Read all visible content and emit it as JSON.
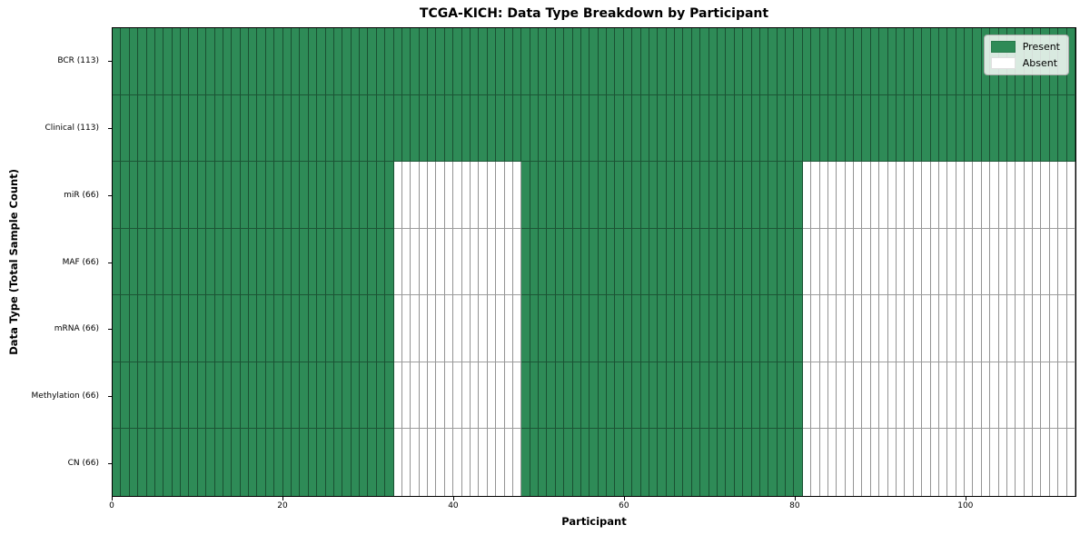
{
  "chart_data": {
    "type": "heatmap",
    "title": "TCGA-KICH: Data Type Breakdown by Participant",
    "xlabel": "Participant",
    "ylabel": "Data Type (Total Sample Count)",
    "x_ticks": [
      0,
      20,
      40,
      60,
      80,
      100
    ],
    "x_range": [
      0,
      113
    ],
    "n_participants": 113,
    "grid": false,
    "colors": {
      "present": "#2e8b57",
      "absent": "#ffffff",
      "cell_edge": "rgba(0,0,0,0.42)",
      "frame": "#000000"
    },
    "legend": {
      "position": "top-right",
      "entries": [
        {
          "label": "Present",
          "color": "#2e8b57"
        },
        {
          "label": "Absent",
          "color": "#ffffff"
        }
      ]
    },
    "rows": [
      {
        "label": "BCR (113)",
        "data_type": "BCR",
        "total_samples": 113,
        "present_ranges": [
          [
            0,
            113
          ]
        ]
      },
      {
        "label": "Clinical (113)",
        "data_type": "Clinical",
        "total_samples": 113,
        "present_ranges": [
          [
            0,
            113
          ]
        ]
      },
      {
        "label": "miR (66)",
        "data_type": "miR",
        "total_samples": 66,
        "present_ranges": [
          [
            0,
            33
          ],
          [
            48,
            81
          ]
        ]
      },
      {
        "label": "MAF (66)",
        "data_type": "MAF",
        "total_samples": 66,
        "present_ranges": [
          [
            0,
            33
          ],
          [
            48,
            81
          ]
        ]
      },
      {
        "label": "mRNA (66)",
        "data_type": "mRNA",
        "total_samples": 66,
        "present_ranges": [
          [
            0,
            33
          ],
          [
            48,
            81
          ]
        ]
      },
      {
        "label": "Methylation (66)",
        "data_type": "Methylation",
        "total_samples": 66,
        "present_ranges": [
          [
            0,
            33
          ],
          [
            48,
            81
          ]
        ]
      },
      {
        "label": "CN (66)",
        "data_type": "CN",
        "total_samples": 66,
        "present_ranges": [
          [
            0,
            33
          ],
          [
            48,
            81
          ]
        ]
      }
    ]
  }
}
